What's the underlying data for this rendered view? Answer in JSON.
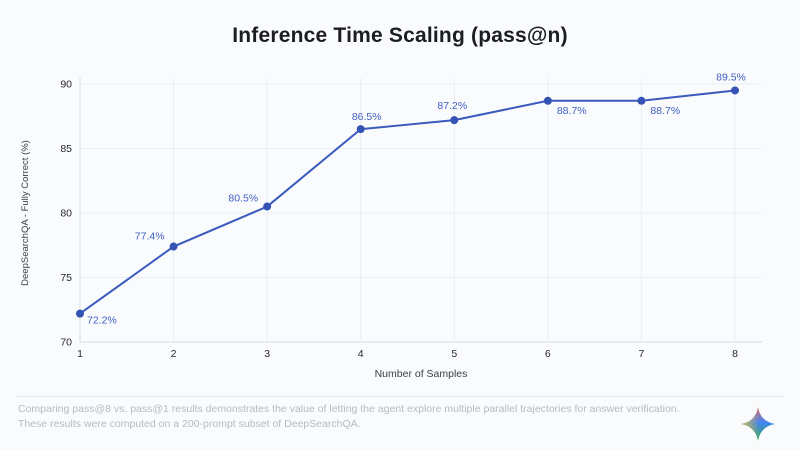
{
  "header": {
    "title": "Inference Time Scaling (pass@n)"
  },
  "chart_data": {
    "type": "line",
    "title": "Inference Time Scaling (pass@n)",
    "xlabel": "Number of Samples",
    "ylabel": "DeepSearchQA - Fully Correct (%)",
    "x": [
      1,
      2,
      3,
      4,
      5,
      6,
      7,
      8
    ],
    "values": [
      72.2,
      77.4,
      80.5,
      86.5,
      87.2,
      88.7,
      88.7,
      89.5
    ],
    "point_labels": [
      "72.2%",
      "77.4%",
      "80.5%",
      "86.5%",
      "87.2%",
      "88.7%",
      "88.7%",
      "89.5%"
    ],
    "xticks": [
      "1",
      "2",
      "3",
      "4",
      "5",
      "6",
      "7",
      "8"
    ],
    "yticks": [
      70,
      75,
      80,
      85,
      90
    ],
    "ylim": [
      70,
      90
    ],
    "grid": true,
    "legend": "none",
    "colors": {
      "line": "#3a5abe",
      "point": "#3453b4",
      "point_label": "#3f5fc2",
      "grid_line": "#ebedf1",
      "axis_line": "#d9dbe0",
      "tick_label": "#26282c",
      "axis_title": "#3c4043"
    }
  },
  "footer": {
    "line1": "Comparing pass@8 vs. pass@1 results demonstrates the value of letting the agent explore multiple parallel trajectories for answer verification.",
    "line2": "These results were computed on a 200-prompt subset of DeepSearchQA.",
    "logo": "gemini-sparkle-icon",
    "logo_colors": {
      "top": "#e2656e",
      "right": "#4285f4",
      "bottom": "#34a853",
      "left": "#d9c04a"
    }
  }
}
